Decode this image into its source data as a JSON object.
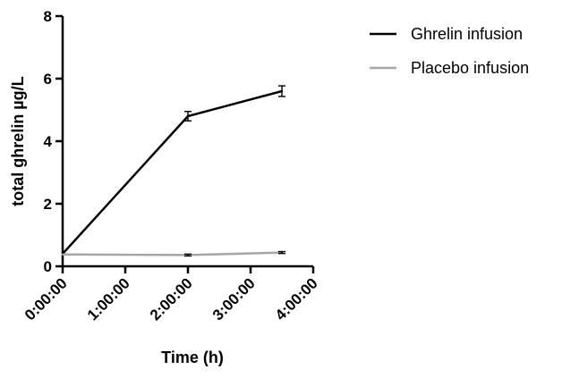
{
  "chart_data": {
    "type": "line",
    "title": "",
    "xlabel": "Time (h)",
    "ylabel": "total ghrelin µg/L",
    "xlim": [
      0,
      4
    ],
    "ylim": [
      0,
      8
    ],
    "x_ticks": [
      "0:00:00",
      "1:00:00",
      "2:00:00",
      "3:00:00",
      "4:00:00"
    ],
    "y_ticks": [
      "0",
      "2",
      "4",
      "6",
      "8"
    ],
    "grid": false,
    "legend_position": "top-right",
    "series": [
      {
        "name": "Ghrelin infusion",
        "color": "#000000",
        "x": [
          "0:00:00",
          "2:00:00",
          "3:30:00"
        ],
        "y": [
          0.4,
          4.8,
          5.6
        ],
        "error": [
          0,
          0.15,
          0.17
        ]
      },
      {
        "name": "Placebo infusion",
        "color": "#a6a6a6",
        "x": [
          "0:00:00",
          "2:00:00",
          "3:30:00"
        ],
        "y": [
          0.38,
          0.36,
          0.44
        ],
        "error": [
          0,
          0.03,
          0.03
        ]
      }
    ]
  }
}
